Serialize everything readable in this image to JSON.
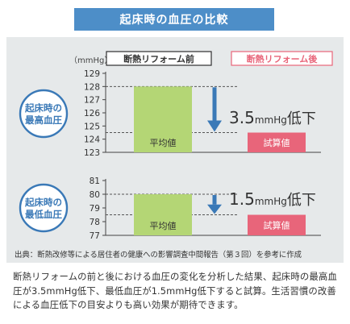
{
  "title": "起床時の血圧の比較",
  "colors": {
    "banner": "#4d8ec8",
    "before_bar": "#b4d675",
    "after_bar": "#e8657a",
    "arrow": "#3a79b7",
    "panel_bg": "#e6e9ea"
  },
  "chart_data": [
    {
      "type": "bar",
      "row_label": "起床時の最高血圧",
      "categories": [
        "断熱リフォーム前",
        "断熱リフォーム後"
      ],
      "values": [
        128,
        124.5
      ],
      "bar_labels": [
        "平均値",
        "試算値"
      ],
      "ylabel": "（mmHg）",
      "ylim": [
        123,
        129
      ],
      "yticks": [
        123,
        124,
        125,
        126,
        127,
        128,
        129
      ],
      "annotation": {
        "value": "3.5",
        "unit": "mmHg",
        "suffix": "低下"
      },
      "grid": "dashed"
    },
    {
      "type": "bar",
      "row_label": "起床時の最低血圧",
      "categories": [
        "断熱リフォーム前",
        "断熱リフォーム後"
      ],
      "values": [
        80,
        78.5
      ],
      "bar_labels": [
        "平均値",
        "試算値"
      ],
      "ylim": [
        77,
        81
      ],
      "yticks": [
        77,
        78,
        79,
        80,
        81
      ],
      "annotation": {
        "value": "1.5",
        "unit": "mmHg",
        "suffix": "低下"
      },
      "grid": "dashed"
    }
  ],
  "legend": {
    "before": "断熱リフォーム前",
    "after": "断熱リフォーム後"
  },
  "source": "出典：断熱改修等による居住者の健康への影響調査中間報告（第３回）を参考に作成",
  "caption": "断熱リフォームの前と後における血圧の変化を分析した結果、起床時の最高血圧が3.5mmHg低下、最低血圧が1.5mmHg低下すると試算。生活習慣の改善による血圧低下の目安よりも高い効果が期待できます。"
}
